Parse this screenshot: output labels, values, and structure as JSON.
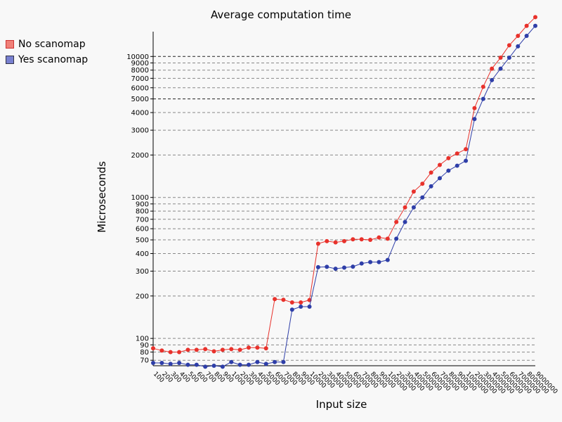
{
  "chart_data": {
    "type": "line",
    "title": "Average computation time",
    "xlabel": "Input size",
    "ylabel": "Microseconds",
    "yscale": "log",
    "ylim": [
      64,
      15000
    ],
    "grid": "horizontal dashed",
    "legend_position": "top-left outside",
    "x": [
      "100",
      "200",
      "300",
      "400",
      "500",
      "600",
      "700",
      "800",
      "900",
      "1000",
      "2000",
      "3000",
      "4000",
      "5000",
      "6000",
      "7000",
      "8000",
      "9000",
      "10000",
      "20000",
      "30000",
      "40000",
      "50000",
      "60000",
      "70000",
      "80000",
      "90000",
      "100000",
      "200000",
      "300000",
      "400000",
      "500000",
      "600000",
      "700000",
      "800000",
      "900000",
      "1000000",
      "2000000",
      "3000000",
      "4000000",
      "5000000",
      "6000000",
      "7000000",
      "8000000",
      "9000000"
    ],
    "yticks": [
      70,
      80,
      90,
      100,
      200,
      300,
      400,
      500,
      600,
      700,
      800,
      900,
      1000,
      2000,
      3000,
      4000,
      5000,
      6000,
      7000,
      8000,
      9000,
      10000
    ],
    "series": [
      {
        "name": "No scanomap",
        "color": "#e8312b",
        "values": [
          85,
          82,
          80,
          80,
          83,
          83,
          84,
          81,
          83,
          84,
          83,
          86,
          86,
          85,
          190,
          188,
          180,
          180,
          187,
          470,
          490,
          480,
          490,
          505,
          505,
          500,
          520,
          510,
          670,
          850,
          1100,
          1250,
          1500,
          1700,
          1900,
          2050,
          2200,
          4300,
          6100,
          8200,
          9800,
          12000,
          14000,
          16500,
          19000
        ]
      },
      {
        "name": "Yes scanomap",
        "color": "#2e3ea8",
        "values": [
          67,
          67,
          66,
          67,
          65,
          65,
          63,
          64,
          63,
          68,
          65,
          65,
          68,
          66,
          68,
          68,
          160,
          168,
          168,
          320,
          322,
          312,
          318,
          323,
          340,
          348,
          348,
          360,
          510,
          670,
          850,
          1000,
          1200,
          1370,
          1550,
          1680,
          1820,
          3600,
          5000,
          6800,
          8200,
          9800,
          11800,
          14000,
          16500
        ]
      }
    ]
  }
}
